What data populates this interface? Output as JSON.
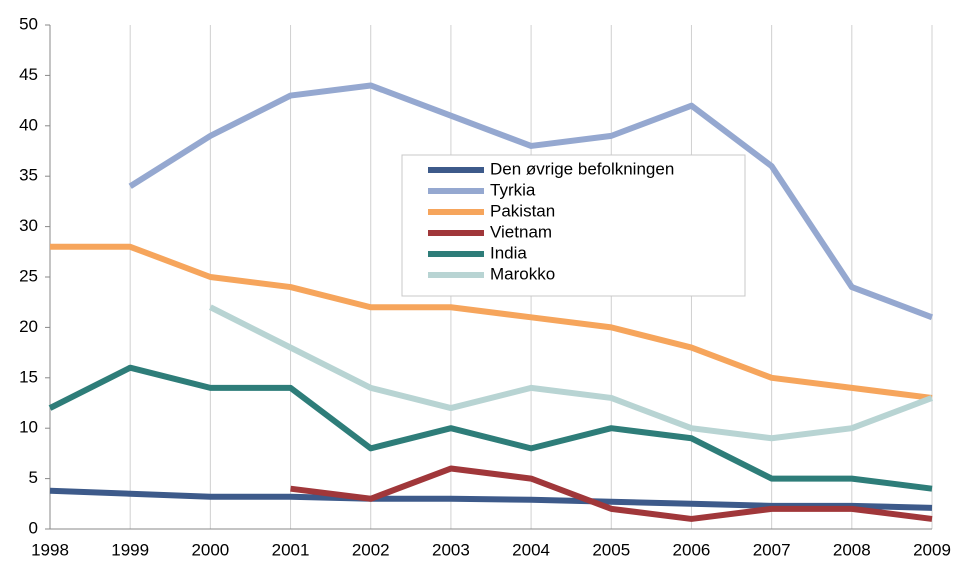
{
  "chart_data": {
    "type": "line",
    "x": [
      1998,
      1999,
      2000,
      2001,
      2002,
      2003,
      2004,
      2005,
      2006,
      2007,
      2008,
      2009
    ],
    "xlim": [
      1998,
      2009
    ],
    "xticks": [
      1998,
      1999,
      2000,
      2001,
      2002,
      2003,
      2004,
      2005,
      2006,
      2007,
      2008,
      2009
    ],
    "ylim": [
      0,
      50
    ],
    "yticks": [
      0,
      5,
      10,
      15,
      20,
      25,
      30,
      35,
      40,
      45,
      50
    ],
    "grid": true,
    "series": [
      {
        "name": "Den øvrige befolkningen",
        "color": "#3d5a8a",
        "values": [
          3.8,
          3.5,
          3.2,
          3.2,
          3.0,
          3.0,
          2.9,
          2.7,
          2.5,
          2.3,
          2.3,
          2.1
        ]
      },
      {
        "name": "Tyrkia",
        "color": "#95a8d0",
        "values": [
          null,
          34,
          39,
          43,
          44,
          41,
          38,
          39,
          42,
          36,
          24,
          21
        ]
      },
      {
        "name": "Pakistan",
        "color": "#f6a55c",
        "values": [
          28,
          28,
          25,
          24,
          22,
          22,
          21,
          20,
          18,
          15,
          14,
          13
        ]
      },
      {
        "name": "Vietnam",
        "color": "#a0373a",
        "values": [
          null,
          null,
          null,
          4,
          3,
          6,
          5,
          2,
          1,
          2,
          2,
          1
        ]
      },
      {
        "name": "India",
        "color": "#2e7d79",
        "values": [
          12,
          16,
          14,
          14,
          8,
          10,
          8,
          10,
          9,
          5,
          5,
          4
        ]
      },
      {
        "name": "Marokko",
        "color": "#b8d4d3",
        "values": [
          null,
          null,
          22,
          18,
          14,
          12,
          14,
          13,
          10,
          9,
          10,
          13
        ]
      }
    ]
  }
}
